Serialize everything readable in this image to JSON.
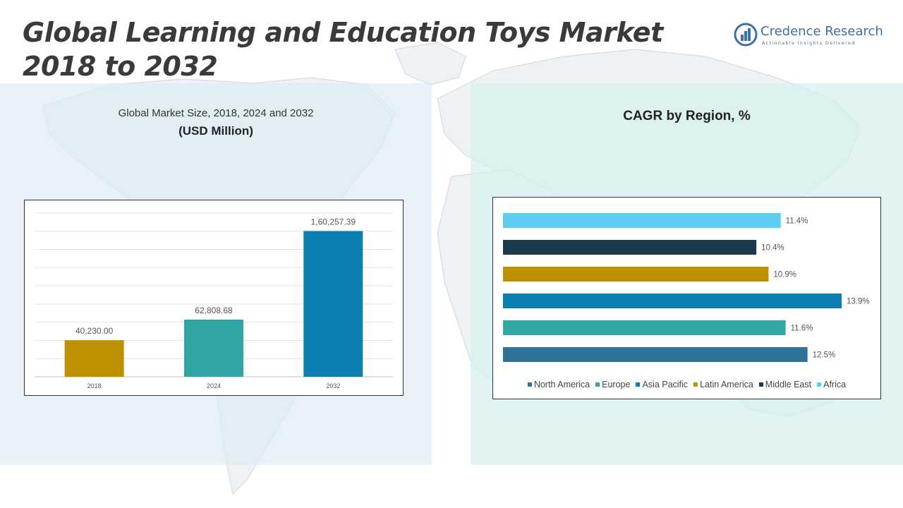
{
  "header": {
    "title": "Global Learning and Education Toys Market 2018 to 2032"
  },
  "logo": {
    "brand": "Credence Research",
    "tagline": "Actionable Insights Delivered"
  },
  "chart_data": [
    {
      "type": "bar",
      "title": "Global Market Size, 2018, 2024 and 2032",
      "subtitle": "(USD Million)",
      "categories": [
        "2018",
        "2024",
        "2032"
      ],
      "values": [
        40230.0,
        62808.68,
        160257.39
      ],
      "value_labels": [
        "40,230.00",
        "62,808.68",
        "1,60,257.39"
      ],
      "colors": [
        "#bf9000",
        "#2fa5a5",
        "#0a7fb0"
      ],
      "ylim": [
        0,
        180000
      ],
      "grid": true,
      "legend": "none"
    },
    {
      "type": "bar",
      "orientation": "horizontal",
      "title": "CAGR by Region, %",
      "categories": [
        "North America",
        "Europe",
        "Asia Pacific",
        "Latin America",
        "Middle East",
        "Africa"
      ],
      "values": [
        12.5,
        11.6,
        13.9,
        10.9,
        10.4,
        11.4
      ],
      "value_labels": [
        "12.5%",
        "11.6%",
        "13.9%",
        "10.9%",
        "10.4%",
        "11.4%"
      ],
      "colors": [
        "#2e7499",
        "#33a7a3",
        "#0a7fb0",
        "#bf9000",
        "#1b3a4b",
        "#5bcdf3"
      ],
      "xlim": [
        0,
        15
      ],
      "grid": false,
      "legend": "bottom"
    }
  ]
}
